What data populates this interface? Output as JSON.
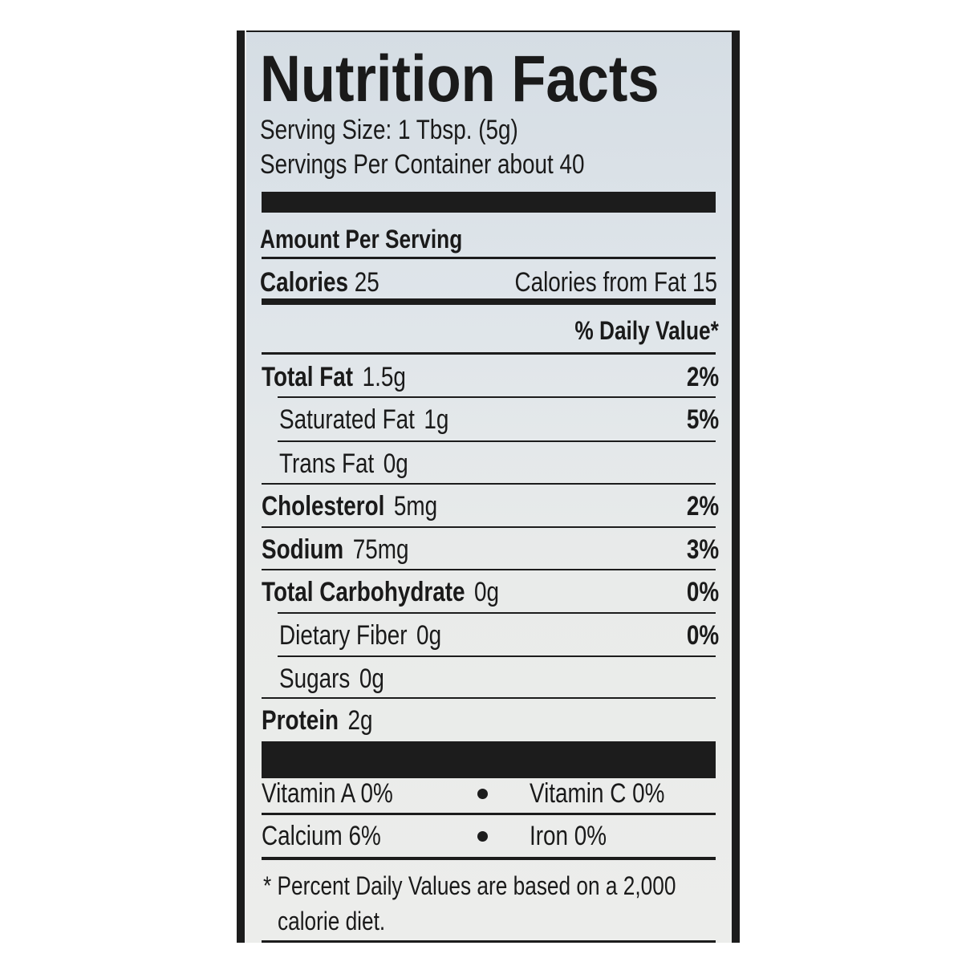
{
  "title": "Nutrition Facts",
  "serving_size": "Serving Size: 1 Tbsp. (5g)",
  "servings_per_container": "Servings Per Container about 40",
  "amount_per_serving": "Amount Per Serving",
  "calories": {
    "label": "Calories",
    "value": "25",
    "from_fat": "Calories from Fat 15"
  },
  "daily_value_header": "% Daily Value*",
  "nutrients": [
    {
      "label": "Total Fat",
      "amount": "1.5g",
      "dv": "2%"
    },
    {
      "label": "Saturated Fat",
      "amount": "1g",
      "dv": "5%"
    },
    {
      "label": "Trans Fat",
      "amount": "0g",
      "dv": ""
    },
    {
      "label": "Cholesterol",
      "amount": "5mg",
      "dv": "2%"
    },
    {
      "label": "Sodium",
      "amount": "75mg",
      "dv": "3%"
    },
    {
      "label": "Total Carbohydrate",
      "amount": "0g",
      "dv": "0%"
    },
    {
      "label": "Dietary Fiber",
      "amount": "0g",
      "dv": "0%"
    },
    {
      "label": "Sugars",
      "amount": "0g",
      "dv": ""
    },
    {
      "label": "Protein",
      "amount": "2g",
      "dv": ""
    }
  ],
  "vitamins": [
    {
      "left": "Vitamin A  0%",
      "right": "Vitamin C  0%"
    },
    {
      "left": "Calcium  6%",
      "right": "Iron  0%"
    }
  ],
  "footnote": [
    "* Percent Daily Values are based on a 2,000",
    "calorie diet."
  ]
}
